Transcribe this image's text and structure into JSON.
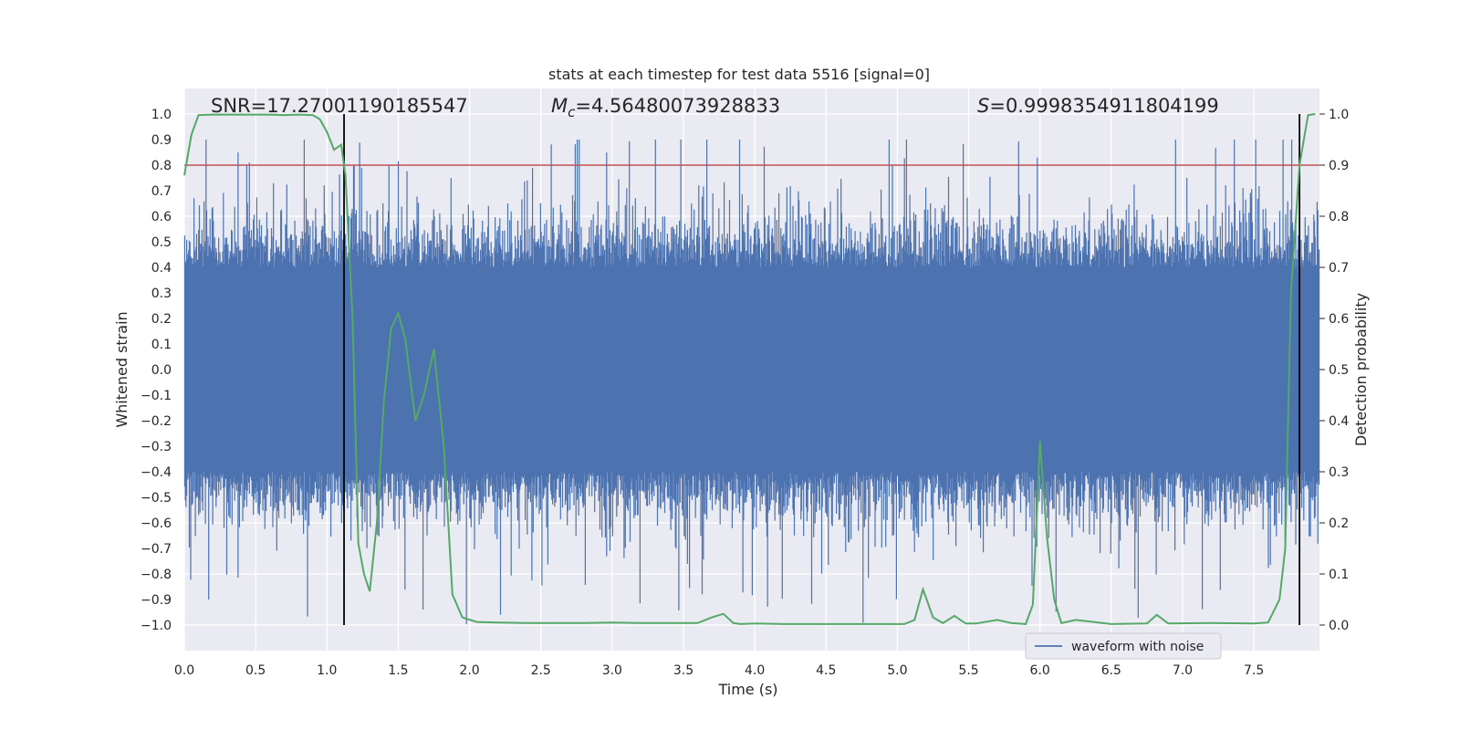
{
  "chart_data": {
    "type": "line",
    "title": "stats at each timestep for test data 5516 [signal=0]",
    "xlabel": "Time (s)",
    "ylabel_left": "Whitened strain",
    "ylabel_right": "Detection probability",
    "xlim": [
      0.0,
      7.96
    ],
    "ylim_left": [
      -1.1,
      1.1
    ],
    "ylim_right": [
      -0.05,
      1.05
    ],
    "grid": true,
    "x_ticks": [
      "0.0",
      "0.5",
      "1.0",
      "1.5",
      "2.0",
      "2.5",
      "3.0",
      "3.5",
      "4.0",
      "4.5",
      "5.0",
      "5.5",
      "6.0",
      "6.5",
      "7.0",
      "7.5"
    ],
    "x_tick_values": [
      0.0,
      0.5,
      1.0,
      1.5,
      2.0,
      2.5,
      3.0,
      3.5,
      4.0,
      4.5,
      5.0,
      5.5,
      6.0,
      6.5,
      7.0,
      7.5
    ],
    "y_left_ticks": [
      "1.0",
      "0.9",
      "0.8",
      "0.7",
      "0.6",
      "0.5",
      "0.4",
      "0.3",
      "0.2",
      "0.1",
      "0.0",
      "−0.1",
      "−0.2",
      "−0.3",
      "−0.4",
      "−0.5",
      "−0.6",
      "−0.7",
      "−0.8",
      "−0.9",
      "−1.0"
    ],
    "y_left_tick_values": [
      1.0,
      0.9,
      0.8,
      0.7,
      0.6,
      0.5,
      0.4,
      0.3,
      0.2,
      0.1,
      0.0,
      -0.1,
      -0.2,
      -0.3,
      -0.4,
      -0.5,
      -0.6,
      -0.7,
      -0.8,
      -0.9,
      -1.0
    ],
    "y_right_ticks": [
      "1.0",
      "0.9",
      "0.8",
      "0.7",
      "0.6",
      "0.5",
      "0.4",
      "0.3",
      "0.2",
      "0.1",
      "0.0"
    ],
    "y_right_tick_values": [
      1.0,
      0.9,
      0.8,
      0.7,
      0.6,
      0.5,
      0.4,
      0.3,
      0.2,
      0.1,
      0.0
    ],
    "annotations": {
      "snr": "SNR=17.27001190185547",
      "mc_prefix": "M",
      "mc_sub": "c",
      "mc_value": "=4.56480073928833",
      "s_prefix": "S",
      "s_value": "=0.9998354911804199"
    },
    "threshold": {
      "axis": "right",
      "value": 0.9
    },
    "vertical_lines": [
      1.12,
      7.82
    ],
    "series": [
      {
        "name": "waveform with noise",
        "axis": "left",
        "color": "#4c72b0",
        "style": "noise",
        "core_amplitude": 0.4,
        "max_amplitude": 1.0
      },
      {
        "name": "Detection probability",
        "axis": "right",
        "color": "#55a868",
        "x": [
          0.0,
          0.05,
          0.1,
          0.2,
          0.3,
          0.4,
          0.5,
          0.6,
          0.7,
          0.8,
          0.9,
          0.95,
          1.0,
          1.05,
          1.1,
          1.13,
          1.18,
          1.22,
          1.26,
          1.3,
          1.35,
          1.4,
          1.45,
          1.5,
          1.55,
          1.62,
          1.68,
          1.75,
          1.82,
          1.88,
          1.95,
          2.05,
          2.2,
          2.4,
          2.6,
          2.8,
          3.0,
          3.2,
          3.4,
          3.6,
          3.7,
          3.78,
          3.85,
          3.9,
          4.0,
          4.2,
          4.5,
          4.8,
          5.05,
          5.12,
          5.18,
          5.25,
          5.32,
          5.4,
          5.48,
          5.55,
          5.7,
          5.8,
          5.9,
          5.95,
          6.0,
          6.05,
          6.1,
          6.15,
          6.25,
          6.5,
          6.75,
          6.82,
          6.9,
          7.2,
          7.5,
          7.6,
          7.68,
          7.72,
          7.76,
          7.82,
          7.88,
          7.93
        ],
        "y": [
          0.88,
          0.96,
          0.998,
          0.999,
          0.999,
          0.999,
          0.999,
          0.999,
          0.998,
          0.999,
          0.998,
          0.99,
          0.965,
          0.93,
          0.94,
          0.88,
          0.6,
          0.16,
          0.1,
          0.066,
          0.2,
          0.44,
          0.58,
          0.61,
          0.56,
          0.4,
          0.45,
          0.54,
          0.35,
          0.06,
          0.015,
          0.006,
          0.005,
          0.004,
          0.004,
          0.004,
          0.005,
          0.004,
          0.004,
          0.004,
          0.015,
          0.022,
          0.004,
          0.002,
          0.003,
          0.002,
          0.002,
          0.002,
          0.002,
          0.01,
          0.07,
          0.015,
          0.004,
          0.018,
          0.003,
          0.003,
          0.01,
          0.004,
          0.002,
          0.04,
          0.36,
          0.17,
          0.05,
          0.004,
          0.01,
          0.002,
          0.003,
          0.02,
          0.003,
          0.004,
          0.003,
          0.005,
          0.05,
          0.15,
          0.65,
          0.9,
          0.998,
          1.0
        ]
      }
    ],
    "legend": {
      "placement": "bottom-center",
      "entries": [
        "waveform with noise"
      ]
    }
  }
}
